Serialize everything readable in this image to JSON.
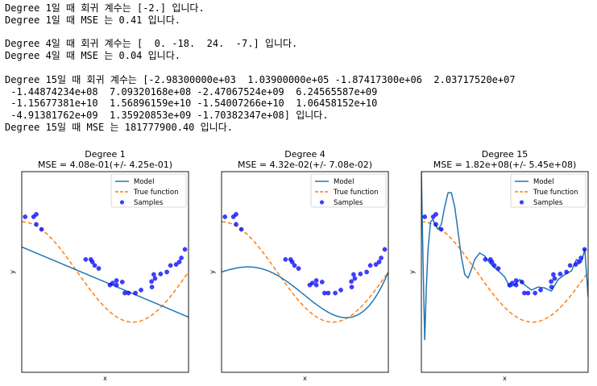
{
  "output": {
    "lines": [
      "Degree 1일 때 회귀 계수는 [-2.] 입니다.",
      "Degree 1일 때 MSE 는 0.41 입니다.",
      "",
      "Degree 4일 때 회귀 계수는 [  0. -18.  24.  -7.] 입니다.",
      "Degree 4일 때 MSE 는 0.04 입니다.",
      "",
      "Degree 15일 때 회귀 계수는 [-2.98300000e+03  1.03900000e+05 -1.87417300e+06  2.03717520e+07",
      " -1.44874234e+08  7.09320168e+08 -2.47067524e+09  6.24565587e+09",
      " -1.15677381e+10  1.56896159e+10 -1.54007266e+10  1.06458152e+10",
      " -4.91381762e+09  1.35920853e+09 -1.70382347e+08] 입니다.",
      "Degree 15일 때 MSE 는 181777900.40 입니다."
    ]
  },
  "colors": {
    "model": "#1f77b4",
    "true_function": "#ff7f0e",
    "samples": "#0000ff"
  },
  "samples": {
    "x": [
      0.0202,
      0.071,
      0.0871,
      0.0871,
      0.1187,
      0.3834,
      0.4141,
      0.4237,
      0.4376,
      0.4615,
      0.5288,
      0.5449,
      0.568,
      0.5684,
      0.6028,
      0.6176,
      0.6399,
      0.6818,
      0.7152,
      0.7782,
      0.7805,
      0.7917,
      0.7992,
      0.8326,
      0.87,
      0.8918,
      0.9256,
      0.9447,
      0.9568,
      0.9786
    ],
    "y": [
      1.1,
      1.1,
      0.95,
      1.15,
      0.85,
      0.25,
      0.25,
      0.2,
      0.13,
      0.07,
      -0.26,
      -0.22,
      -0.17,
      -0.26,
      -0.2,
      -0.42,
      -0.42,
      -0.42,
      -0.36,
      -0.19,
      -0.3,
      -0.05,
      -0.13,
      -0.04,
      0.0,
      0.13,
      0.15,
      0.2,
      0.28,
      0.45
    ]
  },
  "chart_data": [
    {
      "type": "line",
      "title": "Degree 1",
      "subtitle": "MSE = 4.08e-01(+/- 4.25e-01)",
      "xlabel": "x",
      "ylabel": "y",
      "xlim": [
        0,
        1
      ],
      "ylim": [
        -2,
        2
      ],
      "legend": "top-right",
      "legend_entries": [
        "Model",
        "True function",
        "Samples"
      ],
      "series": [
        {
          "name": "Model",
          "x": [
            0,
            1
          ],
          "y": [
            0.5,
            -0.9
          ]
        },
        {
          "name": "True function",
          "function": "cos(1.5*pi*x)"
        },
        {
          "name": "Samples",
          "kind": "scatter"
        }
      ]
    },
    {
      "type": "line",
      "title": "Degree 4",
      "subtitle": "MSE = 4.32e-02(+/- 7.08e-02)",
      "xlabel": "x",
      "ylabel": "y",
      "xlim": [
        0,
        1
      ],
      "ylim": [
        -2,
        2
      ],
      "legend": "top-right",
      "legend_entries": [
        "Model",
        "True function",
        "Samples"
      ],
      "series": [
        {
          "name": "Model",
          "polynomial_coefficients": [
            1,
            0,
            -18,
            24,
            -7
          ]
        },
        {
          "name": "True function",
          "function": "cos(1.5*pi*x)"
        },
        {
          "name": "Samples",
          "kind": "scatter"
        }
      ]
    },
    {
      "type": "line",
      "title": "Degree 15",
      "subtitle": "MSE = 1.82e+08(+/- 5.45e+08)",
      "xlabel": "x",
      "ylabel": "y",
      "xlim": [
        0,
        1
      ],
      "ylim": [
        -2,
        2
      ],
      "legend": "top-right",
      "legend_entries": [
        "Model",
        "True function",
        "Samples"
      ],
      "series": [
        {
          "name": "Model",
          "x": [
            0.0,
            0.01,
            0.02,
            0.03,
            0.04,
            0.055,
            0.07,
            0.08,
            0.09,
            0.1,
            0.12,
            0.14,
            0.16,
            0.18,
            0.2,
            0.22,
            0.24,
            0.26,
            0.28,
            0.3,
            0.32,
            0.35,
            0.38,
            0.41,
            0.44,
            0.47,
            0.5,
            0.53,
            0.56,
            0.59,
            0.62,
            0.66,
            0.7,
            0.74,
            0.78,
            0.82,
            0.86,
            0.9,
            0.93,
            0.96,
            0.98,
            1.0
          ],
          "y": [
            2.0,
            0.2,
            -1.35,
            -0.3,
            0.45,
            1.0,
            1.05,
            0.95,
            0.9,
            0.85,
            0.95,
            1.3,
            1.58,
            1.58,
            1.3,
            0.8,
            0.3,
            -0.05,
            -0.12,
            0.05,
            0.25,
            0.38,
            0.32,
            0.18,
            0.08,
            0.0,
            -0.1,
            -0.3,
            -0.26,
            -0.15,
            -0.26,
            -0.36,
            -0.3,
            -0.32,
            -0.38,
            -0.15,
            -0.05,
            0.02,
            0.25,
            0.2,
            0.45,
            -0.5
          ]
        },
        {
          "name": "True function",
          "function": "cos(1.5*pi*x)"
        },
        {
          "name": "Samples",
          "kind": "scatter"
        }
      ]
    }
  ]
}
